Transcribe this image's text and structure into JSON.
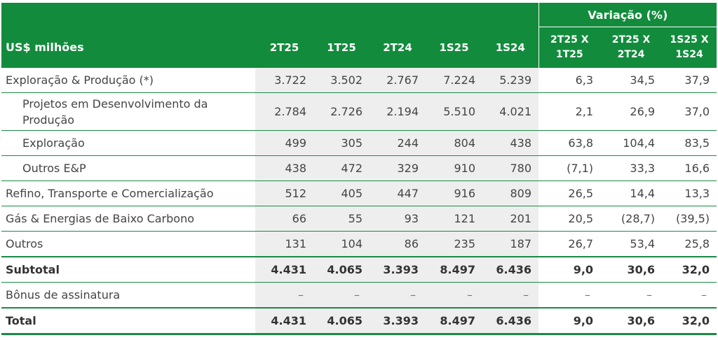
{
  "header": {
    "label": "US$ milhões",
    "variation_group": "Variação (%)",
    "cols": [
      "2T25",
      "1T25",
      "2T24",
      "1S25",
      "1S24"
    ],
    "var_cols": [
      {
        "line1": "2T25 X",
        "line2": "1T25"
      },
      {
        "line1": "2T25 X",
        "line2": "2T24"
      },
      {
        "line1": "1S25 X",
        "line2": "1S24"
      }
    ]
  },
  "rows": [
    {
      "label": "Exploração & Produção (*)",
      "values": [
        "3.722",
        "3.502",
        "2.767",
        "7.224",
        "5.239",
        "6,3",
        "34,5",
        "37,9"
      ]
    },
    {
      "label": "Projetos em Desenvolvimento da Produção",
      "values": [
        "2.784",
        "2.726",
        "2.194",
        "5.510",
        "4.021",
        "2,1",
        "26,9",
        "37,0"
      ]
    },
    {
      "label": "Exploração",
      "values": [
        "499",
        "305",
        "244",
        "804",
        "438",
        "63,8",
        "104,4",
        "83,5"
      ]
    },
    {
      "label": "Outros E&P",
      "values": [
        "438",
        "472",
        "329",
        "910",
        "780",
        "(7,1)",
        "33,3",
        "16,6"
      ]
    },
    {
      "label": "Refino, Transporte e Comercialização",
      "values": [
        "512",
        "405",
        "447",
        "916",
        "809",
        "26,5",
        "14,4",
        "13,3"
      ]
    },
    {
      "label": "Gás & Energias de Baixo Carbono",
      "values": [
        "66",
        "55",
        "93",
        "121",
        "201",
        "20,5",
        "(28,7)",
        "(39,5)"
      ]
    },
    {
      "label": "Outros",
      "values": [
        "131",
        "104",
        "86",
        "235",
        "187",
        "26,7",
        "53,4",
        "25,8"
      ]
    },
    {
      "label": "Subtotal",
      "values": [
        "4.431",
        "4.065",
        "3.393",
        "8.497",
        "6.436",
        "9,0",
        "30,6",
        "32,0"
      ]
    },
    {
      "label": "Bônus de assinatura",
      "values": [
        "–",
        "–",
        "–",
        "–",
        "–",
        "–",
        "–",
        "–"
      ]
    },
    {
      "label": "Total",
      "values": [
        "4.431",
        "4.065",
        "3.393",
        "8.497",
        "6.436",
        "9,0",
        "30,6",
        "32,0"
      ]
    }
  ],
  "colors": {
    "header_bg": "#128c3c",
    "row_line": "#1a8a45",
    "shade": "#eeeeee"
  }
}
